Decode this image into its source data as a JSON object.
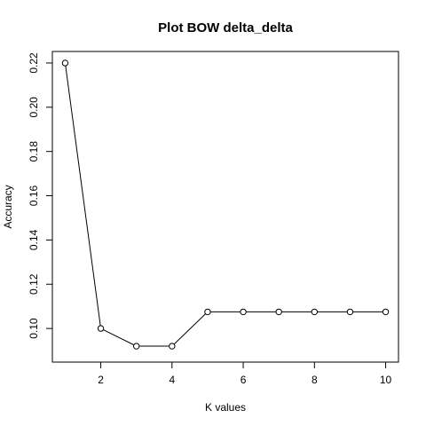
{
  "chart_data": {
    "type": "line",
    "title": "Plot BOW delta_delta",
    "xlabel": "K values",
    "ylabel": "Accuracy",
    "x": [
      1,
      2,
      3,
      4,
      5,
      6,
      7,
      8,
      9,
      10
    ],
    "series": [
      {
        "values": [
          0.22,
          0.1,
          0.092,
          0.092,
          0.1075,
          0.1075,
          0.1075,
          0.1075,
          0.1075,
          0.1075
        ]
      }
    ],
    "xlim": [
      0.64,
      10.36
    ],
    "ylim": [
      0.0848,
      0.2252
    ],
    "xticks": [
      2,
      4,
      6,
      8,
      10
    ],
    "yticks": [
      0.1,
      0.12,
      0.14,
      0.16,
      0.18,
      0.2,
      0.22
    ],
    "ytick_labels": [
      "0.10",
      "0.12",
      "0.14",
      "0.16",
      "0.18",
      "0.20",
      "0.22"
    ],
    "marker": "open-circle",
    "line_color": "#000000",
    "grid": false,
    "legend": "none"
  }
}
